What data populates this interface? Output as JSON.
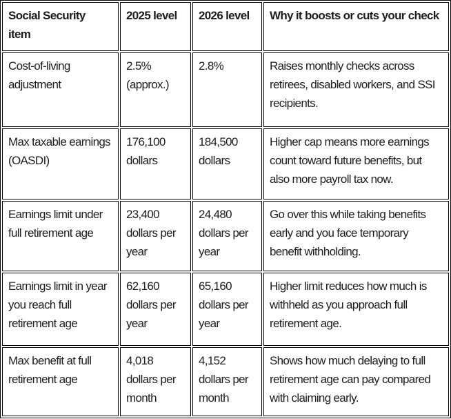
{
  "colors": {
    "border": "#000000",
    "text": "#1d1d1f",
    "header_text": "#000000",
    "background": "#ffffff"
  },
  "table": {
    "headers": {
      "item": "Social Security\nitem",
      "level_2025": "2025 level",
      "level_2026": "2026 level",
      "why": "Why it boosts or cuts your check"
    },
    "rows": [
      {
        "item": "Cost-of-living\nadjustment",
        "level_2025": "2.5%\n(approx.)",
        "level_2026": "2.8%",
        "why": "Raises monthly checks across\nretirees, disabled workers, and SSI\nrecipients."
      },
      {
        "item": "Max taxable earnings\n(OASDI)",
        "level_2025": "176,100\ndollars",
        "level_2026": "184,500\ndollars",
        "why": "Higher cap means more earnings\ncount toward future benefits, but\nalso more payroll tax now."
      },
      {
        "item": "Earnings limit under\nfull retirement age",
        "level_2025": "23,400\ndollars per\nyear",
        "level_2026": "24,480\ndollars per\nyear",
        "why": "Go over this while taking benefits\nearly and you face temporary\nbenefit withholding."
      },
      {
        "item": "Earnings limit in year\nyou reach full\nretirement age",
        "level_2025": "62,160\ndollars per\nyear",
        "level_2026": "65,160\ndollars per\nyear",
        "why": "Higher limit reduces how much is\nwithheld as you approach full\nretirement age."
      },
      {
        "item": "Max benefit at full\nretirement age",
        "level_2025": "4,018\ndollars per\nmonth",
        "level_2026": "4,152\ndollars per\nmonth",
        "why": "Shows how much delaying to full\nretirement age can pay compared\nwith claiming early."
      }
    ]
  },
  "chart_data": {
    "type": "table",
    "columns": [
      "Social Security item",
      "2025 level",
      "2026 level",
      "Why it boosts or cuts your check"
    ],
    "rows": [
      [
        "Cost-of-living adjustment",
        "2.5% (approx.)",
        "2.8%",
        "Raises monthly checks across retirees, disabled workers, and SSI recipients."
      ],
      [
        "Max taxable earnings (OASDI)",
        "176,100 dollars",
        "184,500 dollars",
        "Higher cap means more earnings count toward future benefits, but also more payroll tax now."
      ],
      [
        "Earnings limit under full retirement age",
        "23,400 dollars per year",
        "24,480 dollars per year",
        "Go over this while taking benefits early and you face temporary benefit withholding."
      ],
      [
        "Earnings limit in year you reach full retirement age",
        "62,160 dollars per year",
        "65,160 dollars per year",
        "Higher limit reduces how much is withheld as you approach full retirement age."
      ],
      [
        "Max benefit at full retirement age",
        "4,018 dollars per month",
        "4,152 dollars per month",
        "Shows how much delaying to full retirement age can pay compared with claiming early."
      ]
    ]
  }
}
